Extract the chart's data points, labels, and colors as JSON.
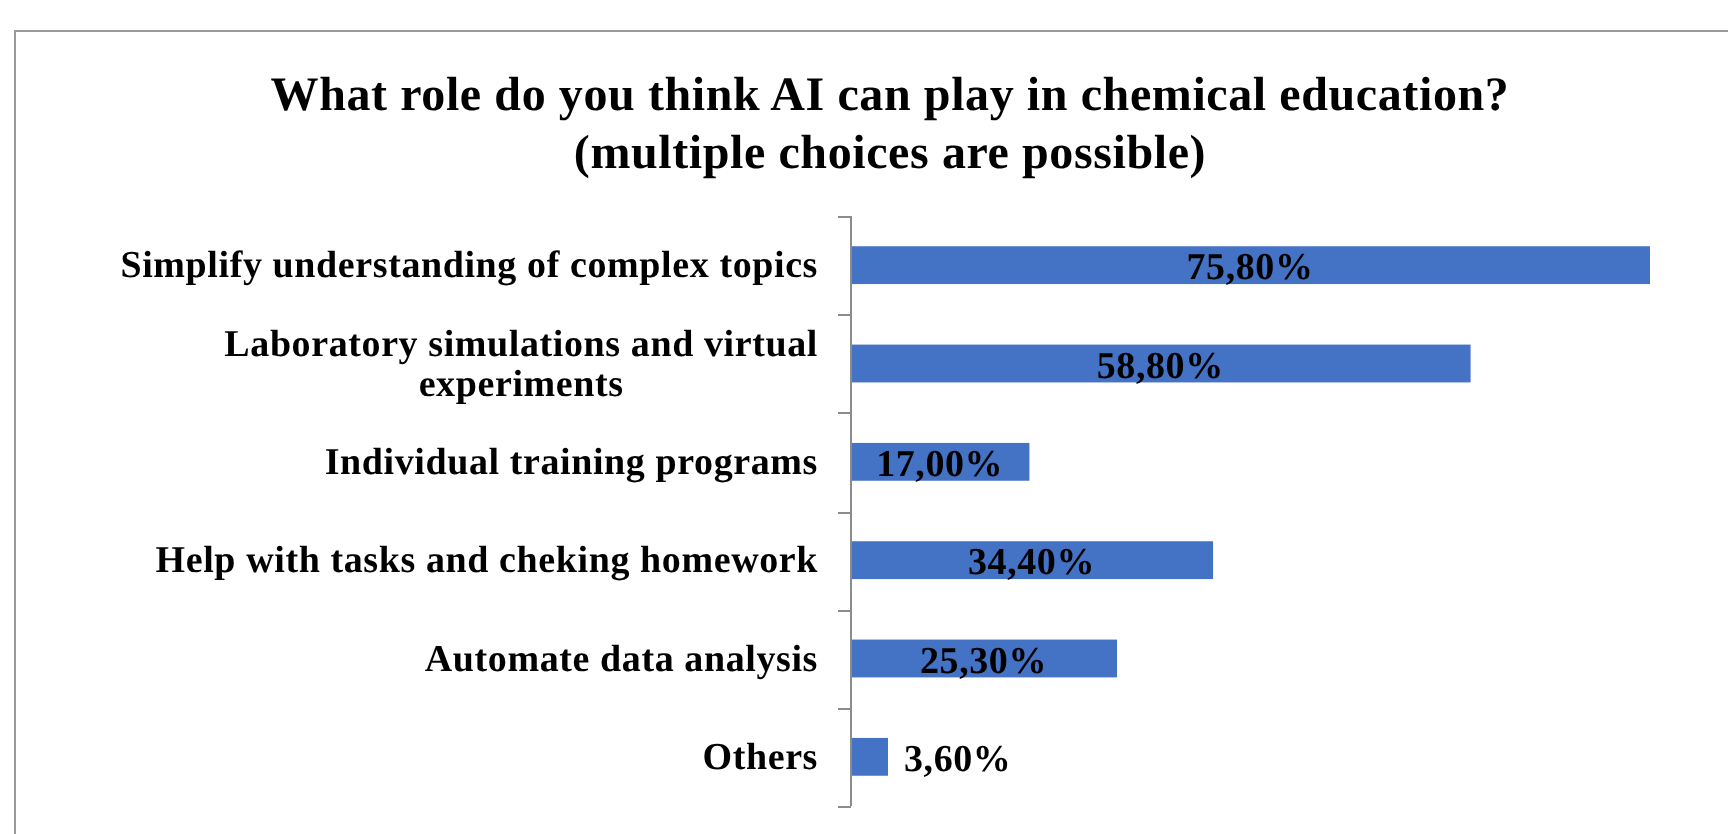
{
  "chart_data": {
    "type": "bar",
    "orientation": "horizontal",
    "title": "What role do you think AI can play in chemical education?\n(multiple choices are possible)",
    "categories": [
      "Simplify understanding of complex topics",
      "Laboratory simulations and virtual experiments",
      "Individual training programs",
      "Help with tasks and cheking homework",
      "Automate data analysis",
      "Others"
    ],
    "values": [
      75.8,
      58.8,
      17.0,
      34.4,
      25.3,
      3.6
    ],
    "color": "#4472c4",
    "value_labels": [
      "75,80%",
      "58,80%",
      "17,00%",
      "34,40%",
      "25,30%",
      "3,60%"
    ]
  }
}
